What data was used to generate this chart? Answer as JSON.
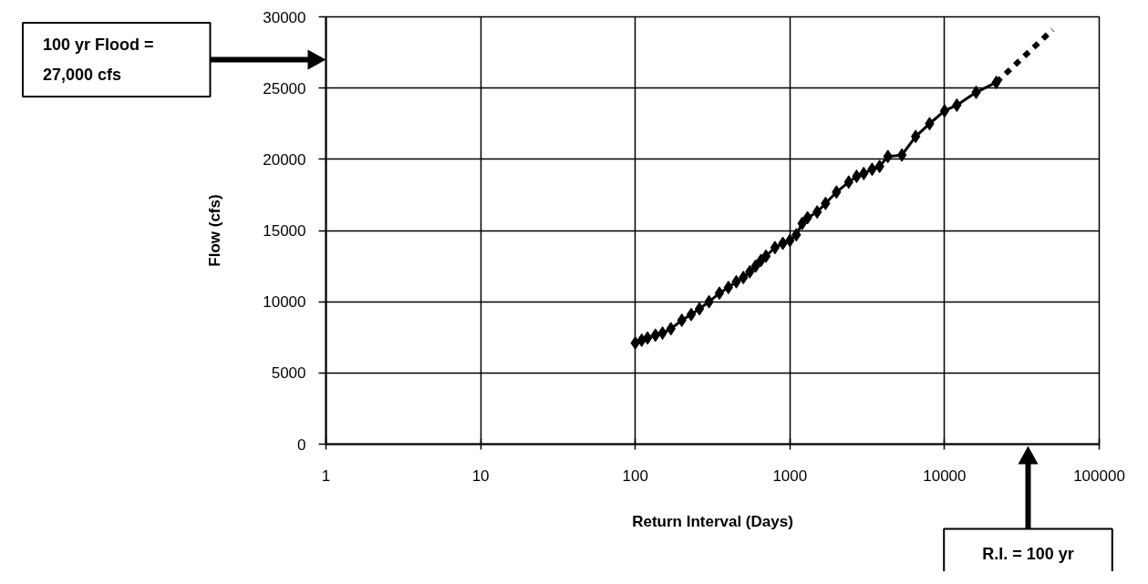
{
  "chart_data": {
    "type": "line",
    "xlabel": "Return Interval (Days)",
    "ylabel": "Flow (cfs)",
    "log": "x",
    "grid": true,
    "xlim": [
      1,
      100000
    ],
    "ylim": [
      0,
      30000
    ],
    "xticks": [
      1,
      10,
      100,
      1000,
      10000,
      100000
    ],
    "yticks": [
      0,
      5000,
      10000,
      15000,
      20000,
      25000,
      30000
    ],
    "series": [
      {
        "color": "#000000",
        "marker": "diamond",
        "line_style": "solid",
        "x": [
          100,
          110,
          120,
          135,
          150,
          170,
          200,
          230,
          260,
          300,
          350,
          400,
          450,
          500,
          550,
          600,
          650,
          700,
          800,
          900,
          1000,
          1100,
          1200,
          1300,
          1500,
          1700,
          2000,
          2400,
          2700,
          3000,
          3400,
          3800,
          4300,
          5300,
          6500,
          8000,
          10000,
          12000,
          16000,
          21600
        ],
        "values": [
          7100,
          7300,
          7450,
          7650,
          7800,
          8100,
          8700,
          9100,
          9500,
          10000,
          10600,
          11000,
          11400,
          11700,
          12100,
          12500,
          12900,
          13200,
          13800,
          14100,
          14300,
          14700,
          15500,
          15900,
          16300,
          16900,
          17700,
          18400,
          18800,
          19000,
          19300,
          19500,
          20200,
          20300,
          21600,
          22500,
          23400,
          23800,
          24700,
          25400
        ]
      },
      {
        "color": "#000000",
        "marker": "none",
        "line_style": "dotted",
        "x": [
          21600,
          50000
        ],
        "values": [
          25400,
          29100
        ]
      }
    ],
    "annotations": [
      "100 yr Flood =\n27,000 cfs",
      "R.I. = 100 yr"
    ]
  }
}
